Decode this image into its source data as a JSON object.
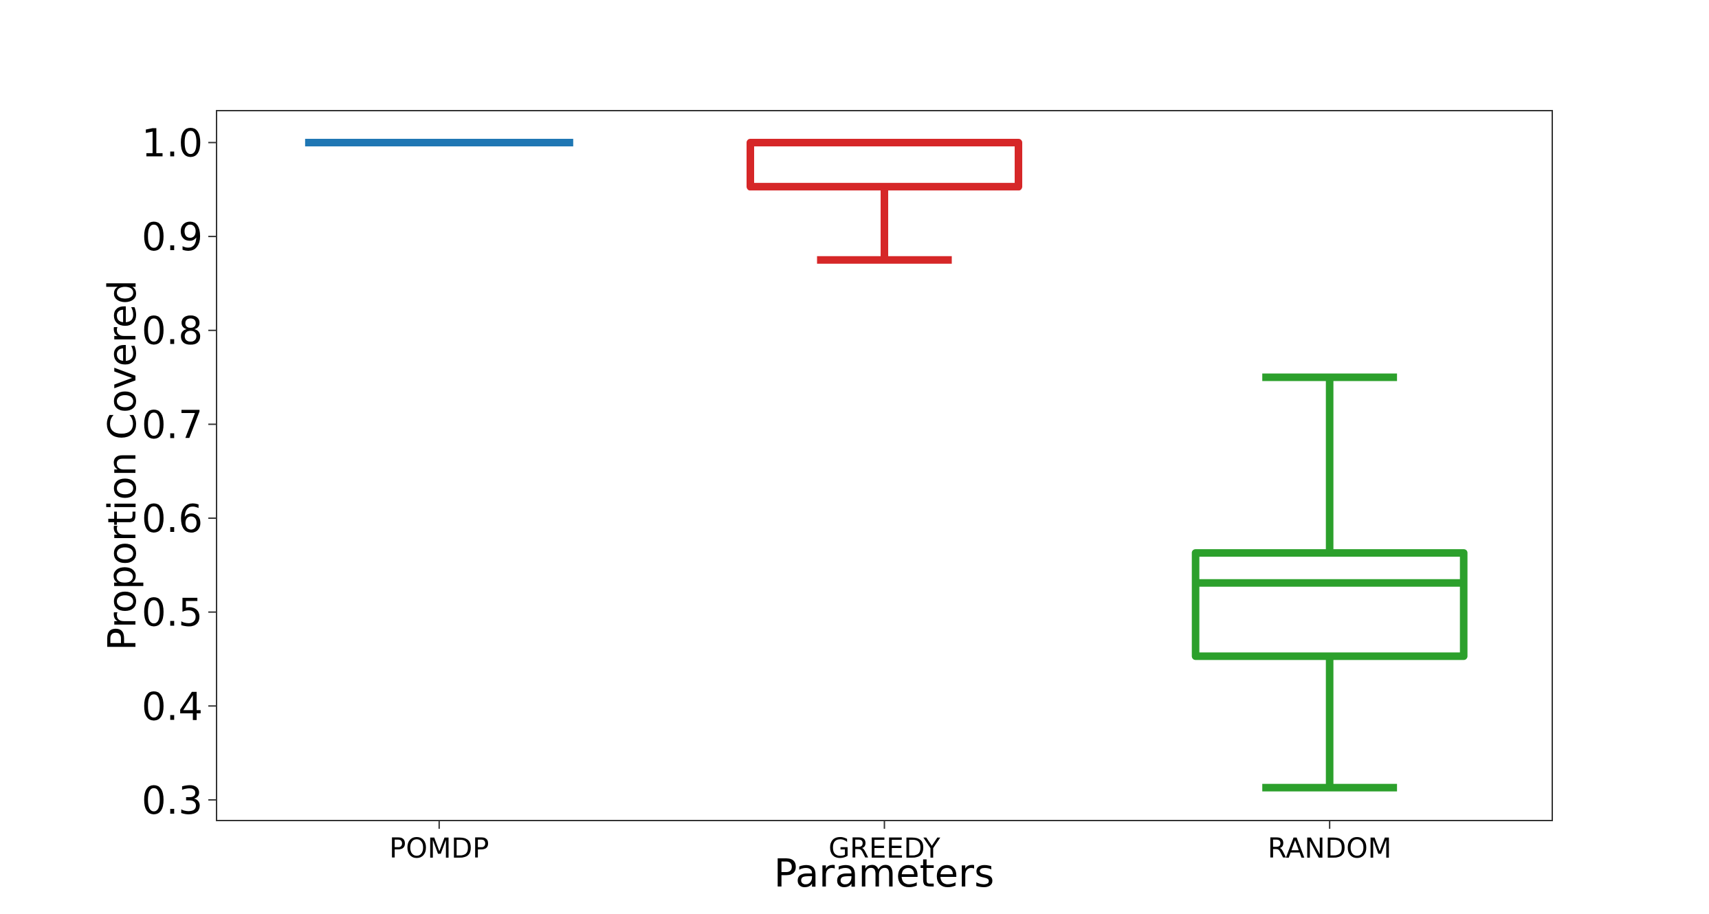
{
  "chart_data": {
    "type": "box",
    "title": "",
    "xlabel": "Parameters",
    "ylabel": "Proportion Covered",
    "ylim": [
      0.278,
      1.034
    ],
    "yticks": [
      0.3,
      0.4,
      0.5,
      0.6,
      0.7,
      0.8,
      0.9,
      1.0
    ],
    "ytick_labels": [
      "0.3",
      "0.4",
      "0.5",
      "0.6",
      "0.7",
      "0.8",
      "0.9",
      "1.0"
    ],
    "categories": [
      "POMDP",
      "GREEDY",
      "RANDOM"
    ],
    "grid": false,
    "legend": "none",
    "boxes": [
      {
        "category": "POMDP",
        "color": "#1f77b4",
        "whisker_low": 1.0,
        "q1": 1.0,
        "median": 1.0,
        "q3": 1.0,
        "whisker_high": 1.0
      },
      {
        "category": "GREEDY",
        "color": "#d62728",
        "whisker_low": 0.875,
        "q1": 0.953,
        "median": 1.0,
        "q3": 1.0,
        "whisker_high": 1.0
      },
      {
        "category": "RANDOM",
        "color": "#2ca02c",
        "whisker_low": 0.313,
        "q1": 0.453,
        "median": 0.531,
        "q3": 0.563,
        "whisker_high": 0.75
      }
    ]
  }
}
